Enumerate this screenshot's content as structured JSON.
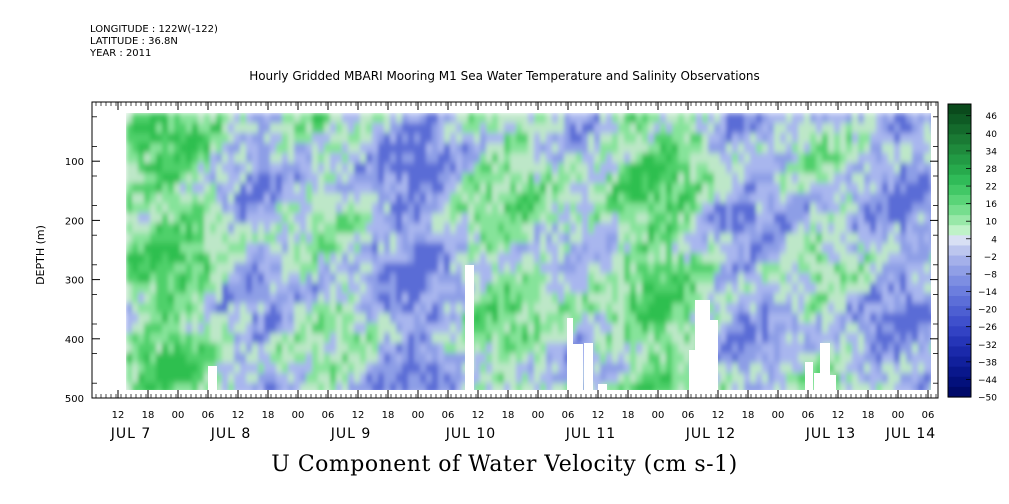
{
  "header": {
    "longitude": "LONGITUDE : 122W(-122)",
    "latitude": "LATITUDE : 36.8N",
    "year": "YEAR : 2011"
  },
  "chart_data": {
    "type": "heatmap",
    "title": "Hourly Gridded MBARI Mooring M1 Sea Water Temperature and Salinity Observations",
    "xlabel": "U Component of Water Velocity (cm s-1)",
    "ylabel": "DEPTH (m)",
    "y_ticks": [
      100,
      200,
      300,
      400,
      500
    ],
    "y_range": [
      0,
      500
    ],
    "y_inverted": true,
    "x_hour_ticks": [
      "12",
      "18",
      "00",
      "06",
      "12",
      "18",
      "00",
      "06",
      "12",
      "18",
      "00",
      "06",
      "12",
      "18",
      "00",
      "06",
      "12",
      "18",
      "00",
      "06",
      "12",
      "18",
      "00",
      "06",
      "12",
      "18",
      "00",
      "06"
    ],
    "x_day_labels": [
      "JUL 7",
      "JUL 8",
      "JUL 9",
      "JUL 10",
      "JUL 11",
      "JUL 12",
      "JUL 13",
      "JUL 14"
    ],
    "colorbar": {
      "labels": [
        "46",
        "40",
        "34",
        "28",
        "22",
        "16",
        "10",
        "4",
        "-2",
        "-8",
        "-14",
        "-20",
        "-26",
        "-32",
        "-38",
        "-44",
        "-50"
      ],
      "min": -50,
      "max": 50,
      "colors_top_to_bottom": [
        "#0a4a1c",
        "#0e5a24",
        "#146a2c",
        "#1a7a34",
        "#1f8a3c",
        "#229a44",
        "#27aa4c",
        "#30bb58",
        "#42c866",
        "#5ad478",
        "#76de8e",
        "#98e8a8",
        "#bff2c8",
        "#d8e0f4",
        "#bcc6ee",
        "#a4b0ea",
        "#909fe6",
        "#7d8ee2",
        "#6c7ede",
        "#5c6ed8",
        "#4d5fd2",
        "#3f50cc",
        "#3242c4",
        "#2535b8",
        "#1a29aa",
        "#11209c",
        "#09178c",
        "#03107c",
        "#000a6a"
      ]
    },
    "gaps_white": true
  }
}
